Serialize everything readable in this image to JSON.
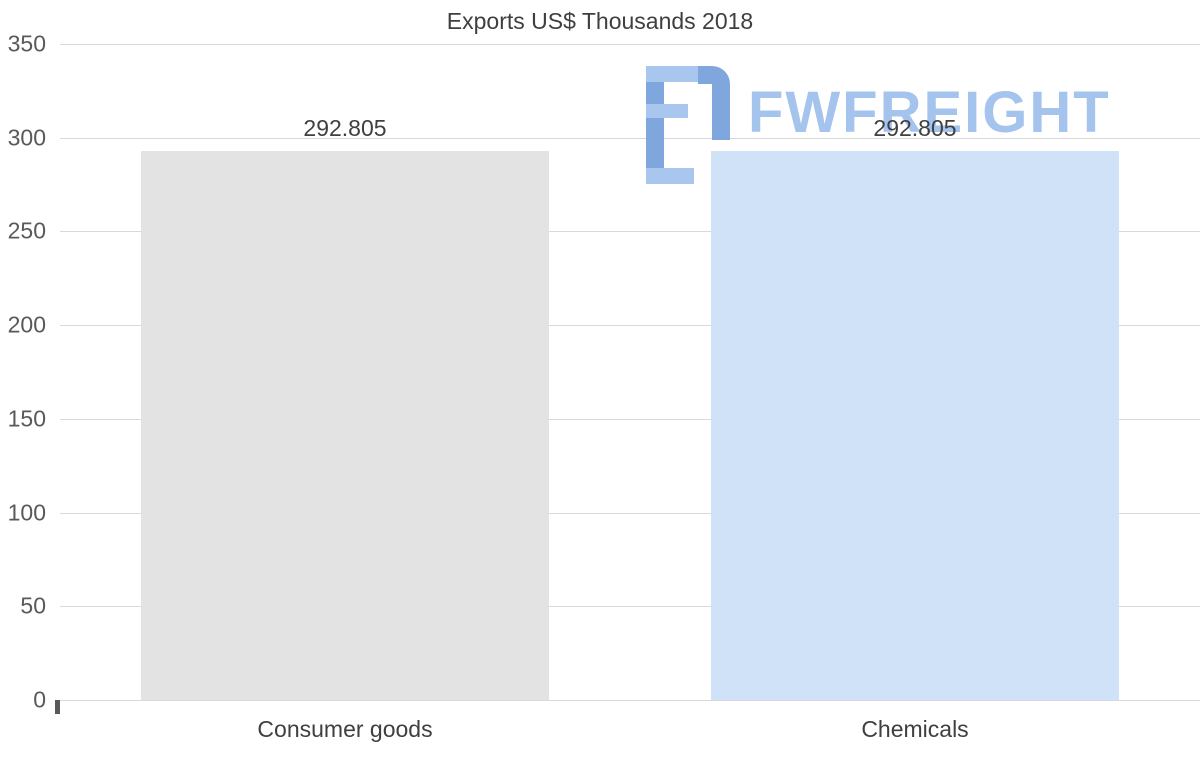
{
  "title": "Exports US$ Thousands 2018",
  "watermark": {
    "text": "FWFREIGHT"
  },
  "chart_data": {
    "type": "bar",
    "title": "Exports US$ Thousands 2018",
    "categories": [
      "Consumer goods",
      "Chemicals"
    ],
    "values": [
      292.805,
      292.805
    ],
    "value_labels": [
      "292.805",
      "292.805"
    ],
    "ylim": [
      0,
      350
    ],
    "yticks": [
      0,
      50,
      100,
      150,
      200,
      250,
      300,
      350
    ],
    "yticks_display": [
      "350",
      "300",
      "250",
      "200",
      "150",
      "100",
      "50",
      "0"
    ],
    "grid": true,
    "legend": false,
    "xlabel": "",
    "ylabel": "",
    "bar_colors": [
      "#e3e3e3",
      "#cfe2f8"
    ]
  },
  "colors": {
    "title_text": "#3f3f3f",
    "tick_label": "#595959",
    "grid_line": "#d9d9d9",
    "value_label": "#404040",
    "watermark_text": "#a4c3ed",
    "watermark_icon_main": "#7fa7de",
    "watermark_icon_accent": "#a9c6ee"
  }
}
